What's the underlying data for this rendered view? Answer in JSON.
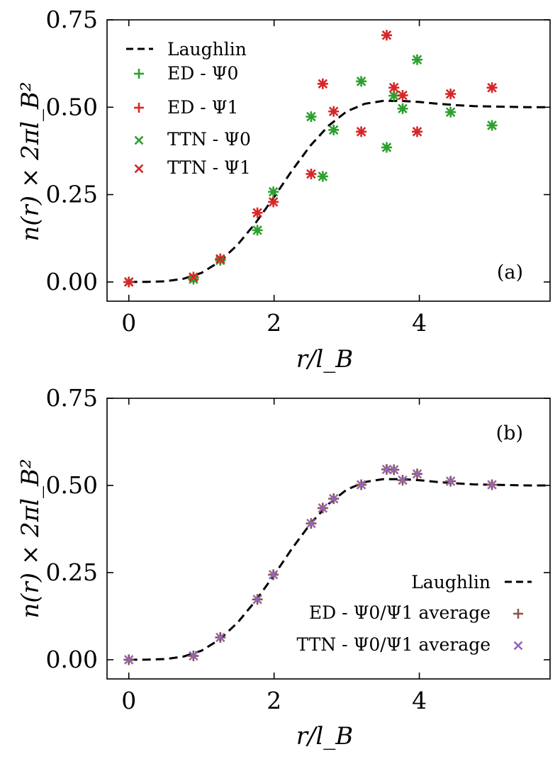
{
  "chart_data": [
    {
      "type": "scatter",
      "panel_label": "(a)",
      "xlabel": "r/l_B",
      "ylabel": "n(r) × 2πl_B²",
      "xlim": [
        -0.3,
        5.8
      ],
      "ylim": [
        -0.055,
        0.75
      ],
      "xticks": [
        0,
        2,
        4
      ],
      "xtick_labels": [
        "0",
        "2",
        "4"
      ],
      "yticks": [
        0.0,
        0.25,
        0.5,
        0.75
      ],
      "ytick_labels": [
        "0.00",
        "0.25",
        "0.50",
        "0.75"
      ],
      "legend_position": "upper-left",
      "curve": {
        "name": "Laughlin",
        "color": "#000000",
        "x": [
          0,
          0.25,
          0.5,
          0.75,
          1.0,
          1.25,
          1.5,
          1.75,
          2.0,
          2.25,
          2.5,
          2.75,
          3.0,
          3.25,
          3.5,
          3.75,
          4.0,
          4.25,
          4.5,
          4.75,
          5.0,
          5.25,
          5.5,
          5.8
        ],
        "y": [
          0.0,
          0.0003,
          0.002,
          0.009,
          0.026,
          0.058,
          0.107,
          0.17,
          0.243,
          0.32,
          0.39,
          0.447,
          0.488,
          0.51,
          0.518,
          0.518,
          0.515,
          0.51,
          0.506,
          0.503,
          0.502,
          0.501,
          0.5,
          0.5
        ]
      },
      "series": [
        {
          "name": "ED - Ψ0",
          "marker": "plus",
          "color": "#2ca02c",
          "x": [
            0,
            0.89,
            1.26,
            1.77,
            1.99,
            2.51,
            2.67,
            2.82,
            3.2,
            3.55,
            3.65,
            3.77,
            3.97,
            4.43,
            5.0
          ],
          "y": [
            0.0,
            0.008,
            0.062,
            0.148,
            0.258,
            0.473,
            0.302,
            0.435,
            0.574,
            0.385,
            0.533,
            0.496,
            0.636,
            0.486,
            0.448
          ]
        },
        {
          "name": "ED - Ψ1",
          "marker": "plus",
          "color": "#d62728",
          "x": [
            0,
            0.89,
            1.26,
            1.77,
            1.99,
            2.51,
            2.67,
            2.82,
            3.2,
            3.55,
            3.65,
            3.77,
            3.97,
            4.43,
            5.0
          ],
          "y": [
            0.0,
            0.014,
            0.066,
            0.198,
            0.229,
            0.309,
            0.567,
            0.488,
            0.43,
            0.706,
            0.556,
            0.534,
            0.43,
            0.538,
            0.556
          ]
        },
        {
          "name": "TTN - Ψ0",
          "marker": "x",
          "color": "#2ca02c",
          "x": [
            0,
            0.89,
            1.26,
            1.77,
            1.99,
            2.51,
            2.67,
            2.82,
            3.2,
            3.55,
            3.65,
            3.77,
            3.97,
            4.43,
            5.0
          ],
          "y": [
            0.0,
            0.008,
            0.062,
            0.148,
            0.258,
            0.473,
            0.302,
            0.435,
            0.574,
            0.385,
            0.533,
            0.496,
            0.636,
            0.486,
            0.448
          ]
        },
        {
          "name": "TTN - Ψ1",
          "marker": "x",
          "color": "#d62728",
          "x": [
            0,
            0.89,
            1.26,
            1.77,
            1.99,
            2.51,
            2.67,
            2.82,
            3.2,
            3.55,
            3.65,
            3.77,
            3.97,
            4.43,
            5.0
          ],
          "y": [
            0.0,
            0.014,
            0.066,
            0.198,
            0.229,
            0.309,
            0.567,
            0.488,
            0.43,
            0.706,
            0.556,
            0.534,
            0.43,
            0.538,
            0.556
          ]
        }
      ]
    },
    {
      "type": "scatter",
      "panel_label": "(b)",
      "xlabel": "r/l_B",
      "ylabel": "n(r) × 2πl_B²",
      "xlim": [
        -0.3,
        5.8
      ],
      "ylim": [
        -0.055,
        0.75
      ],
      "xticks": [
        0,
        2,
        4
      ],
      "xtick_labels": [
        "0",
        "2",
        "4"
      ],
      "yticks": [
        0.0,
        0.25,
        0.5,
        0.75
      ],
      "ytick_labels": [
        "0.00",
        "0.25",
        "0.50",
        "0.75"
      ],
      "legend_position": "lower-right",
      "curve": {
        "name": "Laughlin",
        "color": "#000000",
        "x": [
          0,
          0.25,
          0.5,
          0.75,
          1.0,
          1.25,
          1.5,
          1.75,
          2.0,
          2.25,
          2.5,
          2.75,
          3.0,
          3.25,
          3.5,
          3.75,
          4.0,
          4.25,
          4.5,
          4.75,
          5.0,
          5.25,
          5.5,
          5.8
        ],
        "y": [
          0.0,
          0.0003,
          0.002,
          0.009,
          0.026,
          0.058,
          0.107,
          0.17,
          0.243,
          0.32,
          0.39,
          0.447,
          0.488,
          0.51,
          0.518,
          0.518,
          0.515,
          0.51,
          0.506,
          0.503,
          0.502,
          0.501,
          0.5,
          0.5
        ]
      },
      "series": [
        {
          "name": "ED - Ψ0/Ψ1 average",
          "marker": "plus",
          "color": "#8c564b",
          "x": [
            0,
            0.89,
            1.26,
            1.77,
            1.99,
            2.51,
            2.67,
            2.82,
            3.2,
            3.55,
            3.65,
            3.77,
            3.97,
            4.43,
            5.0
          ],
          "y": [
            0.0,
            0.011,
            0.064,
            0.173,
            0.244,
            0.391,
            0.435,
            0.462,
            0.502,
            0.546,
            0.545,
            0.515,
            0.533,
            0.512,
            0.502
          ]
        },
        {
          "name": "TTN - Ψ0/Ψ1 average",
          "marker": "x",
          "color": "#9467bd",
          "x": [
            0,
            0.89,
            1.26,
            1.77,
            1.99,
            2.51,
            2.67,
            2.82,
            3.2,
            3.55,
            3.65,
            3.77,
            3.97,
            4.43,
            5.0
          ],
          "y": [
            0.0,
            0.011,
            0.064,
            0.173,
            0.244,
            0.391,
            0.435,
            0.462,
            0.502,
            0.546,
            0.545,
            0.515,
            0.533,
            0.512,
            0.502
          ]
        }
      ]
    }
  ]
}
